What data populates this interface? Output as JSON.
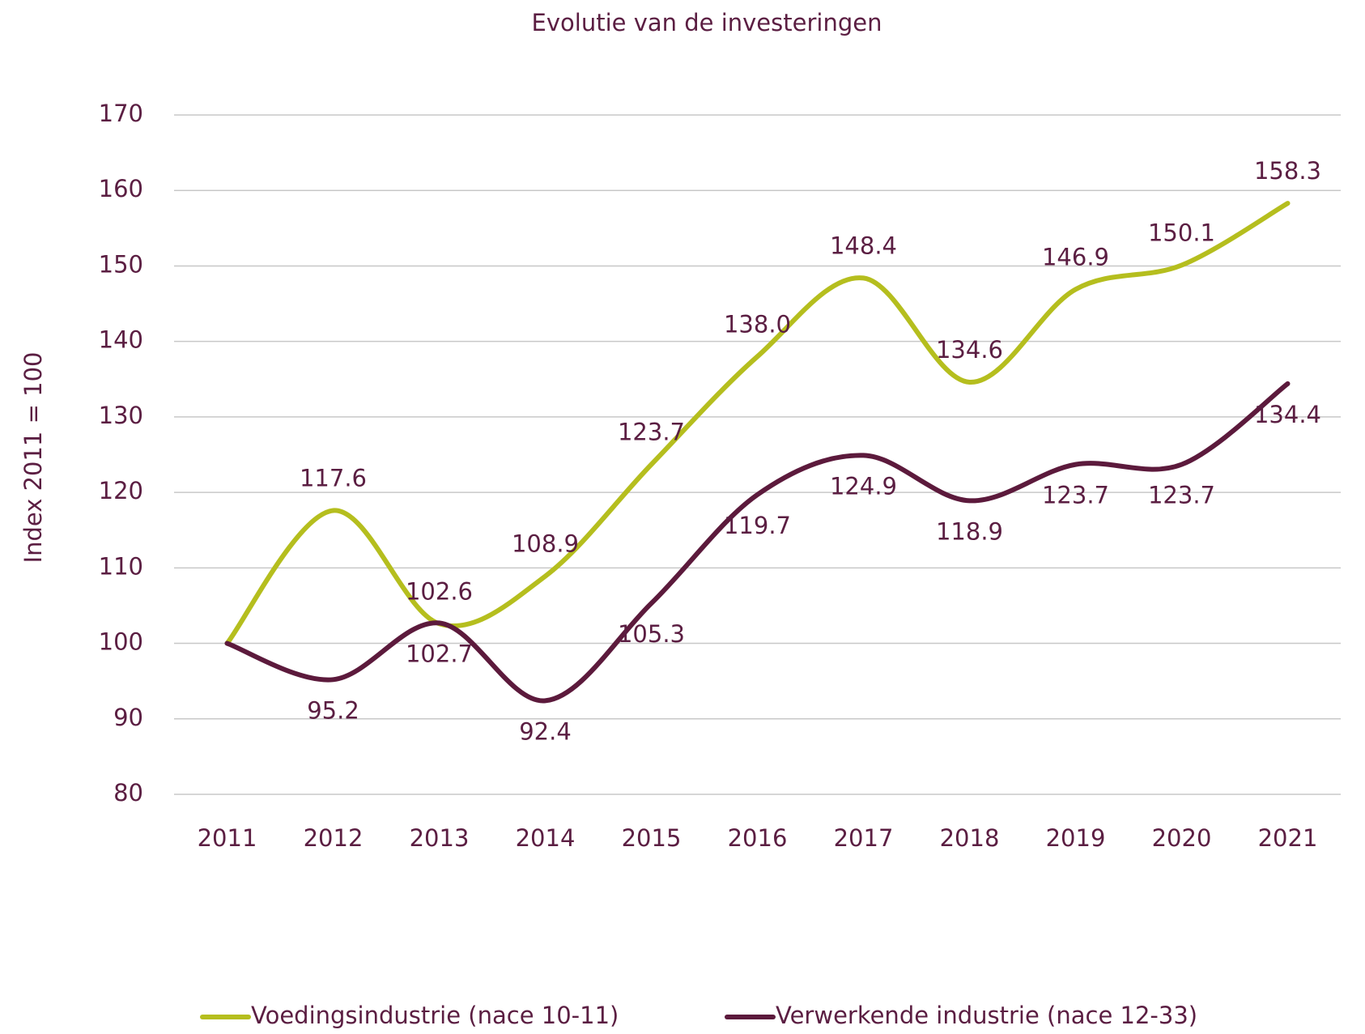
{
  "chart_data": {
    "type": "line",
    "title": "Evolutie van de investeringen",
    "y_label": "Index 2011 = 100",
    "categories": [
      "2011",
      "2012",
      "2013",
      "2014",
      "2015",
      "2016",
      "2017",
      "2018",
      "2019",
      "2020",
      "2021"
    ],
    "series": [
      {
        "name": "Voedingsindustrie (nace 10-11)",
        "color": "#b5be1e",
        "values": [
          100,
          117.6,
          102.6,
          108.9,
          123.7,
          138.0,
          148.4,
          134.6,
          146.9,
          150.1,
          158.3
        ],
        "value_labels": [
          null,
          "117.6",
          "102.6",
          "108.9",
          "123.7",
          "138.0",
          "148.4",
          "134.6",
          "146.9",
          "150.1",
          "158.3"
        ]
      },
      {
        "name": "Verwerkende industrie (nace 12-33)",
        "color": "#5c1a3c",
        "values": [
          100,
          95.2,
          102.7,
          92.4,
          105.3,
          119.7,
          124.9,
          118.9,
          123.7,
          123.7,
          134.4
        ],
        "value_labels": [
          null,
          "95.2",
          "102.7",
          "92.4",
          "105.3",
          "119.7",
          "124.9",
          "118.9",
          "123.7",
          "123.7",
          "134.4"
        ]
      }
    ],
    "ylim": [
      80,
      170
    ],
    "yticks": [
      80,
      90,
      100,
      110,
      120,
      130,
      140,
      150,
      160,
      170
    ],
    "grid": true,
    "legend": "bottom"
  }
}
